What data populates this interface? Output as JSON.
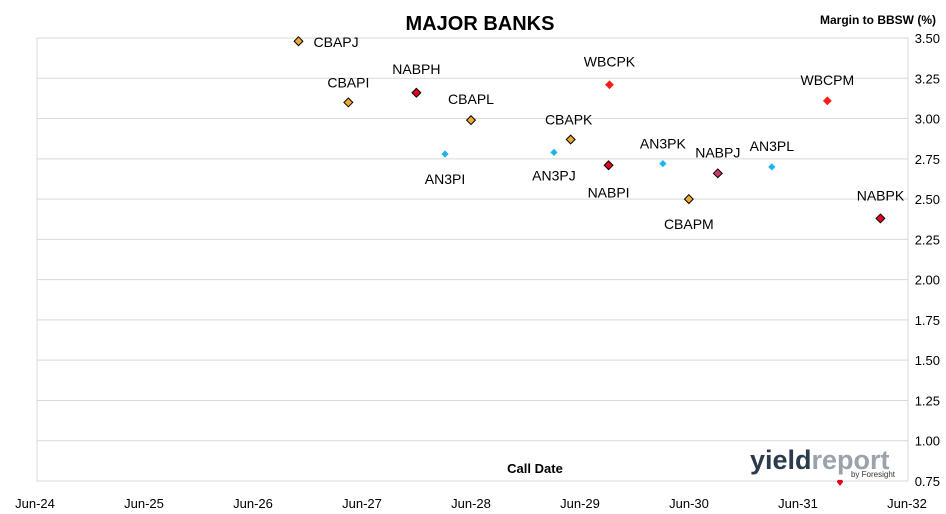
{
  "chart_data": {
    "type": "scatter",
    "title": "MAJOR BANKS",
    "xlabel": "Call Date",
    "ylabel": "Margin to BBSW (%)",
    "x_ticks": [
      "Jun-24",
      "Jun-25",
      "Jun-26",
      "Jun-27",
      "Jun-28",
      "Jun-29",
      "Jun-30",
      "Jun-31",
      "Jun-32"
    ],
    "ylim": [
      0.75,
      3.5
    ],
    "y_ticks": [
      "0.75",
      "1.00",
      "1.25",
      "1.50",
      "1.75",
      "2.00",
      "2.25",
      "2.50",
      "2.75",
      "3.00",
      "3.25",
      "3.50"
    ],
    "y_gridlines": true,
    "legend": "none",
    "points": [
      {
        "label": "CBAPJ",
        "x": "2026-11-15",
        "y": 3.48,
        "bank": "CBA",
        "color": "#F0A830"
      },
      {
        "label": "CBAPI",
        "x": "2027-05-01",
        "y": 3.1,
        "bank": "CBA",
        "color": "#F0A830"
      },
      {
        "label": "NABPH",
        "x": "2027-12-15",
        "y": 3.16,
        "bank": "NAB",
        "color": "#E8001C"
      },
      {
        "label": "CBAPL",
        "x": "2028-06-15",
        "y": 2.99,
        "bank": "CBA",
        "color": "#F0A830"
      },
      {
        "label": "AN3PI",
        "x": "2028-03-20",
        "y": 2.78,
        "bank": "ANZ",
        "color": "#1EB4EC"
      },
      {
        "label": "AN3PJ",
        "x": "2029-03-20",
        "y": 2.79,
        "bank": "ANZ",
        "color": "#1EB4EC"
      },
      {
        "label": "CBAPK",
        "x": "2029-05-15",
        "y": 2.87,
        "bank": "CBA",
        "color": "#F0A830"
      },
      {
        "label": "WBCPK",
        "x": "2029-09-22",
        "y": 3.21,
        "bank": "WBC",
        "color": "#FF1A1A"
      },
      {
        "label": "NABPI",
        "x": "2029-09-19",
        "y": 2.71,
        "bank": "NAB",
        "color": "#E8001C"
      },
      {
        "label": "AN3PK",
        "x": "2030-03-20",
        "y": 2.72,
        "bank": "ANZ",
        "color": "#1EB4EC"
      },
      {
        "label": "CBAPM",
        "x": "2030-06-15",
        "y": 2.5,
        "bank": "CBA",
        "color": "#F0A830"
      },
      {
        "label": "NABPJ",
        "x": "2030-09-20",
        "y": 2.66,
        "bank": "NAB",
        "color": "#C83C64"
      },
      {
        "label": "AN3PL",
        "x": "2031-03-20",
        "y": 2.7,
        "bank": "ANZ",
        "color": "#1EB4EC"
      },
      {
        "label": "WBCPM",
        "x": "2031-09-22",
        "y": 3.11,
        "bank": "WBC",
        "color": "#FF1A1A"
      },
      {
        "label": "NABPK",
        "x": "2032-03-18",
        "y": 2.38,
        "bank": "NAB",
        "color": "#E8001C"
      }
    ]
  },
  "logo": {
    "text_yield": "yield",
    "text_report": "report",
    "byline": "by Foresight",
    "colors": {
      "yield": "#2B3B4E",
      "report": "#9AA3AC",
      "byline_accent": "#E8001C"
    }
  }
}
